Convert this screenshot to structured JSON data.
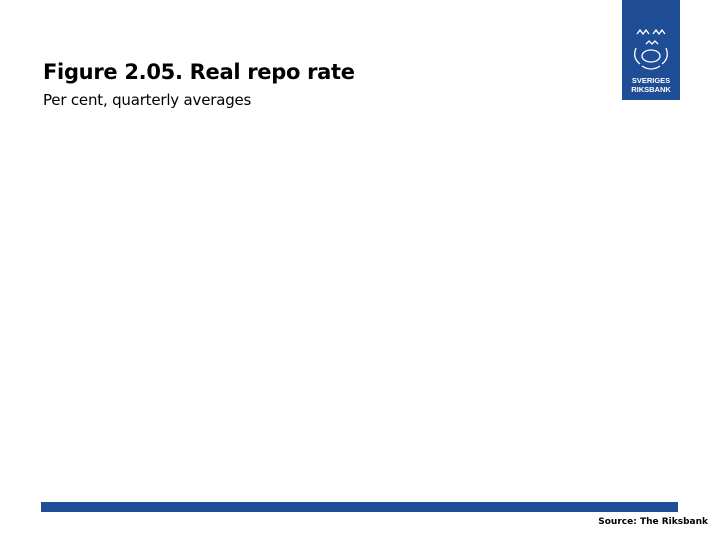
{
  "header": {
    "title": "Figure 2.05. Real repo rate",
    "subtitle": "Per cent, quarterly averages"
  },
  "logo": {
    "line1": "SVERIGES",
    "line2": "RIKSBANK"
  },
  "footer": {
    "source": "Source: The Riksbank"
  }
}
